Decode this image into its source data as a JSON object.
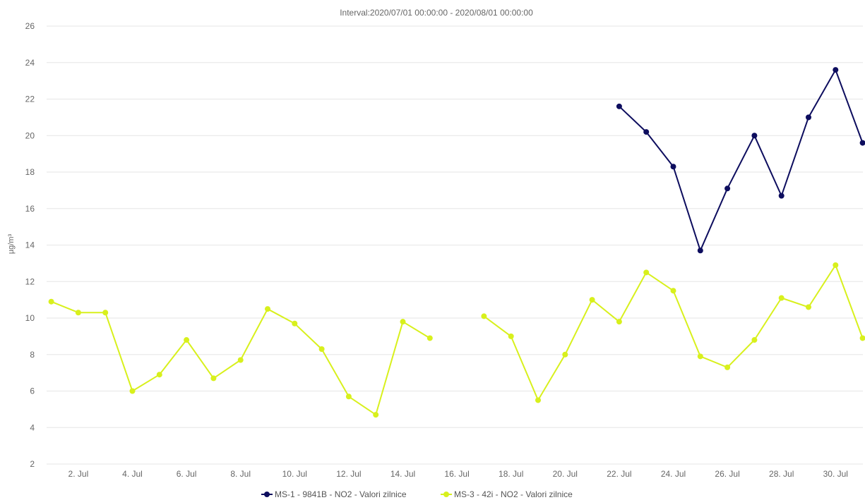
{
  "chart_data": {
    "type": "line",
    "title": "Interval:2020/07/01 00:00:00 - 2020/08/01 00:00:00",
    "ylabel": "µg/m³",
    "xlabel": "",
    "ylim": [
      2,
      26
    ],
    "yticks": [
      2,
      4,
      6,
      8,
      10,
      12,
      14,
      16,
      18,
      20,
      22,
      24,
      26
    ],
    "xlim": [
      1,
      31.5
    ],
    "xticks": [
      {
        "day": 2,
        "label": "2. Jul"
      },
      {
        "day": 4,
        "label": "4. Jul"
      },
      {
        "day": 6,
        "label": "6. Jul"
      },
      {
        "day": 8,
        "label": "8. Jul"
      },
      {
        "day": 10,
        "label": "10. Jul"
      },
      {
        "day": 12,
        "label": "12. Jul"
      },
      {
        "day": 14,
        "label": "14. Jul"
      },
      {
        "day": 16,
        "label": "16. Jul"
      },
      {
        "day": 18,
        "label": "18. Jul"
      },
      {
        "day": 20,
        "label": "20. Jul"
      },
      {
        "day": 22,
        "label": "22. Jul"
      },
      {
        "day": 24,
        "label": "24. Jul"
      },
      {
        "day": 26,
        "label": "26. Jul"
      },
      {
        "day": 28,
        "label": "28. Jul"
      },
      {
        "day": 30,
        "label": "30. Jul"
      }
    ],
    "grid": "horizontal",
    "legend_position": "bottom-center",
    "series": [
      {
        "name": "MS-1 - 9841B - NO2 - Valori zilnice",
        "color": "#0d0d5e",
        "points": [
          {
            "day": 22,
            "value": 21.6
          },
          {
            "day": 23,
            "value": 20.2
          },
          {
            "day": 24,
            "value": 18.3
          },
          {
            "day": 25,
            "value": 13.7
          },
          {
            "day": 26,
            "value": 17.1
          },
          {
            "day": 27,
            "value": 20.0
          },
          {
            "day": 28,
            "value": 16.7
          },
          {
            "day": 29,
            "value": 21.0
          },
          {
            "day": 30,
            "value": 23.6
          },
          {
            "day": 31,
            "value": 19.6
          }
        ]
      },
      {
        "name": "MS-3 - 42i - NO2 - Valori zilnice",
        "color": "#d8f01c",
        "points": [
          {
            "day": 1,
            "value": 10.9
          },
          {
            "day": 2,
            "value": 10.3
          },
          {
            "day": 3,
            "value": 10.3
          },
          {
            "day": 4,
            "value": 6.0
          },
          {
            "day": 5,
            "value": 6.9
          },
          {
            "day": 6,
            "value": 8.8
          },
          {
            "day": 7,
            "value": 6.7
          },
          {
            "day": 8,
            "value": 7.7
          },
          {
            "day": 9,
            "value": 10.5
          },
          {
            "day": 10,
            "value": 9.7
          },
          {
            "day": 11,
            "value": 8.3
          },
          {
            "day": 12,
            "value": 5.7
          },
          {
            "day": 13,
            "value": 4.7
          },
          {
            "day": 14,
            "value": 9.8
          },
          {
            "day": 15,
            "value": 8.9
          },
          {
            "day": 17,
            "value": 10.1
          },
          {
            "day": 18,
            "value": 9.0
          },
          {
            "day": 19,
            "value": 5.5
          },
          {
            "day": 20,
            "value": 8.0
          },
          {
            "day": 21,
            "value": 11.0
          },
          {
            "day": 22,
            "value": 9.8
          },
          {
            "day": 23,
            "value": 12.5
          },
          {
            "day": 24,
            "value": 11.5
          },
          {
            "day": 25,
            "value": 7.9
          },
          {
            "day": 26,
            "value": 7.3
          },
          {
            "day": 27,
            "value": 8.8
          },
          {
            "day": 28,
            "value": 11.1
          },
          {
            "day": 29,
            "value": 10.6
          },
          {
            "day": 30,
            "value": 12.9
          },
          {
            "day": 31,
            "value": 8.9
          }
        ]
      }
    ]
  }
}
